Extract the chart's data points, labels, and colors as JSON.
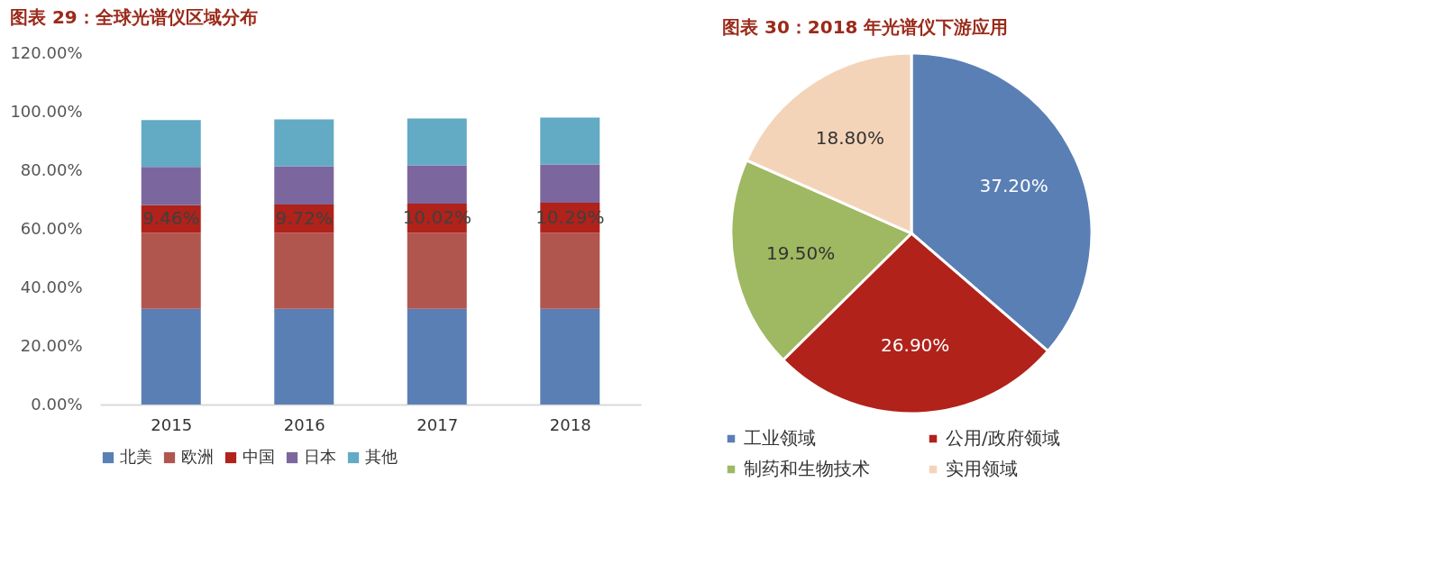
{
  "chart_data": [
    {
      "type": "bar",
      "title": "图表 29：全球光谱仪区域分布",
      "categories": [
        "2015",
        "2016",
        "2017",
        "2018"
      ],
      "stacked": true,
      "legend": "bottom",
      "ylim": [
        0,
        120
      ],
      "yticks": [
        {
          "value": 0,
          "label": "0.00%"
        },
        {
          "value": 20,
          "label": "20.00%"
        },
        {
          "value": 40,
          "label": "40.00%"
        },
        {
          "value": 60,
          "label": "60.00%"
        },
        {
          "value": 80,
          "label": "80.00%"
        },
        {
          "value": 100,
          "label": "100.00%"
        },
        {
          "value": 120,
          "label": "120.00%"
        }
      ],
      "series": [
        {
          "name": "北美",
          "color": "#5a7fb5",
          "values": [
            32.7,
            32.7,
            32.7,
            32.7
          ]
        },
        {
          "name": "欧洲",
          "color": "#b0564e",
          "values": [
            25.9,
            25.9,
            25.9,
            25.9
          ]
        },
        {
          "name": "中国",
          "color": "#b0221a",
          "values": [
            9.46,
            9.72,
            10.02,
            10.29
          ],
          "value_labels": [
            "9.46%",
            "9.72%",
            "10.02%",
            "10.29%"
          ]
        },
        {
          "name": "日本",
          "color": "#7b679e",
          "values": [
            13.1,
            13.1,
            13.1,
            13.1
          ]
        },
        {
          "name": "其他",
          "color": "#63aac4",
          "values": [
            16.0,
            16.0,
            16.0,
            16.0
          ]
        }
      ]
    },
    {
      "type": "pie",
      "title": "图表 30：2018 年光谱仪下游应用",
      "categories": [
        "工业领域",
        "公用/政府领域",
        "制药和生物技术",
        "实用领域"
      ],
      "values": [
        37.2,
        26.9,
        19.5,
        18.8
      ],
      "value_labels": [
        "37.20%",
        "26.90%",
        "19.50%",
        "18.80%"
      ],
      "colors": [
        "#5a7fb5",
        "#b0221a",
        "#9fb862",
        "#f4d4b8"
      ],
      "legend": "bottom"
    }
  ]
}
